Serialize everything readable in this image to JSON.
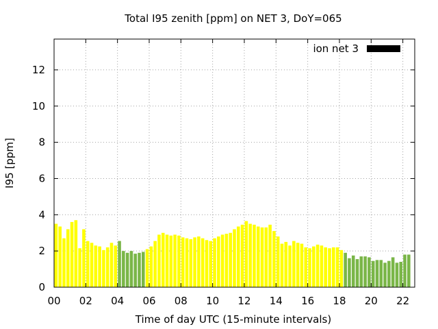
{
  "chart_data": {
    "type": "bar",
    "title": "Total I95 zenith [ppm] on NET 3, DoY=065",
    "xlabel": "Time of day UTC (15-minute intervals)",
    "ylabel": "I95 [ppm]",
    "x_ticks": [
      "00",
      "02",
      "04",
      "06",
      "08",
      "10",
      "12",
      "14",
      "16",
      "18",
      "20",
      "22"
    ],
    "y_ticks": [
      "0",
      "2",
      "4",
      "6",
      "8",
      "10",
      "12"
    ],
    "ylim": [
      0,
      13.7
    ],
    "xlim": [
      0,
      22.75
    ],
    "bar_width_hours": 0.25,
    "grid": true,
    "legend": {
      "label": "ion net 3",
      "position": "top-right",
      "swatch_color": "#000000"
    },
    "colors": {
      "yellow": "#ffff00",
      "green": "#7ab648"
    },
    "segments": [
      {
        "start_hour": 0.0,
        "end_hour": 4.0,
        "color": "yellow"
      },
      {
        "start_hour": 4.0,
        "end_hour": 5.75,
        "color": "green"
      },
      {
        "start_hour": 5.75,
        "end_hour": 18.25,
        "color": "yellow"
      },
      {
        "start_hour": 18.25,
        "end_hour": 22.75,
        "color": "green"
      }
    ],
    "values": [
      3.5,
      3.35,
      2.7,
      3.2,
      3.6,
      3.7,
      2.15,
      3.2,
      2.55,
      2.45,
      2.3,
      2.25,
      2.05,
      2.2,
      2.45,
      2.3,
      2.55,
      2.0,
      1.9,
      2.0,
      1.85,
      1.9,
      1.95,
      2.1,
      2.25,
      2.55,
      2.9,
      3.0,
      2.9,
      2.85,
      2.9,
      2.85,
      2.75,
      2.7,
      2.65,
      2.75,
      2.8,
      2.7,
      2.6,
      2.55,
      2.7,
      2.8,
      2.9,
      2.95,
      3.0,
      3.2,
      3.35,
      3.45,
      3.65,
      3.5,
      3.45,
      3.35,
      3.3,
      3.3,
      3.45,
      3.1,
      2.8,
      2.4,
      2.5,
      2.3,
      2.55,
      2.45,
      2.4,
      2.2,
      2.15,
      2.25,
      2.35,
      2.3,
      2.2,
      2.15,
      2.2,
      2.2,
      2.05,
      1.9,
      1.6,
      1.75,
      1.55,
      1.7,
      1.7,
      1.65,
      1.45,
      1.5,
      1.5,
      1.35,
      1.45,
      1.65,
      1.35,
      1.4,
      1.8,
      1.8
    ]
  }
}
